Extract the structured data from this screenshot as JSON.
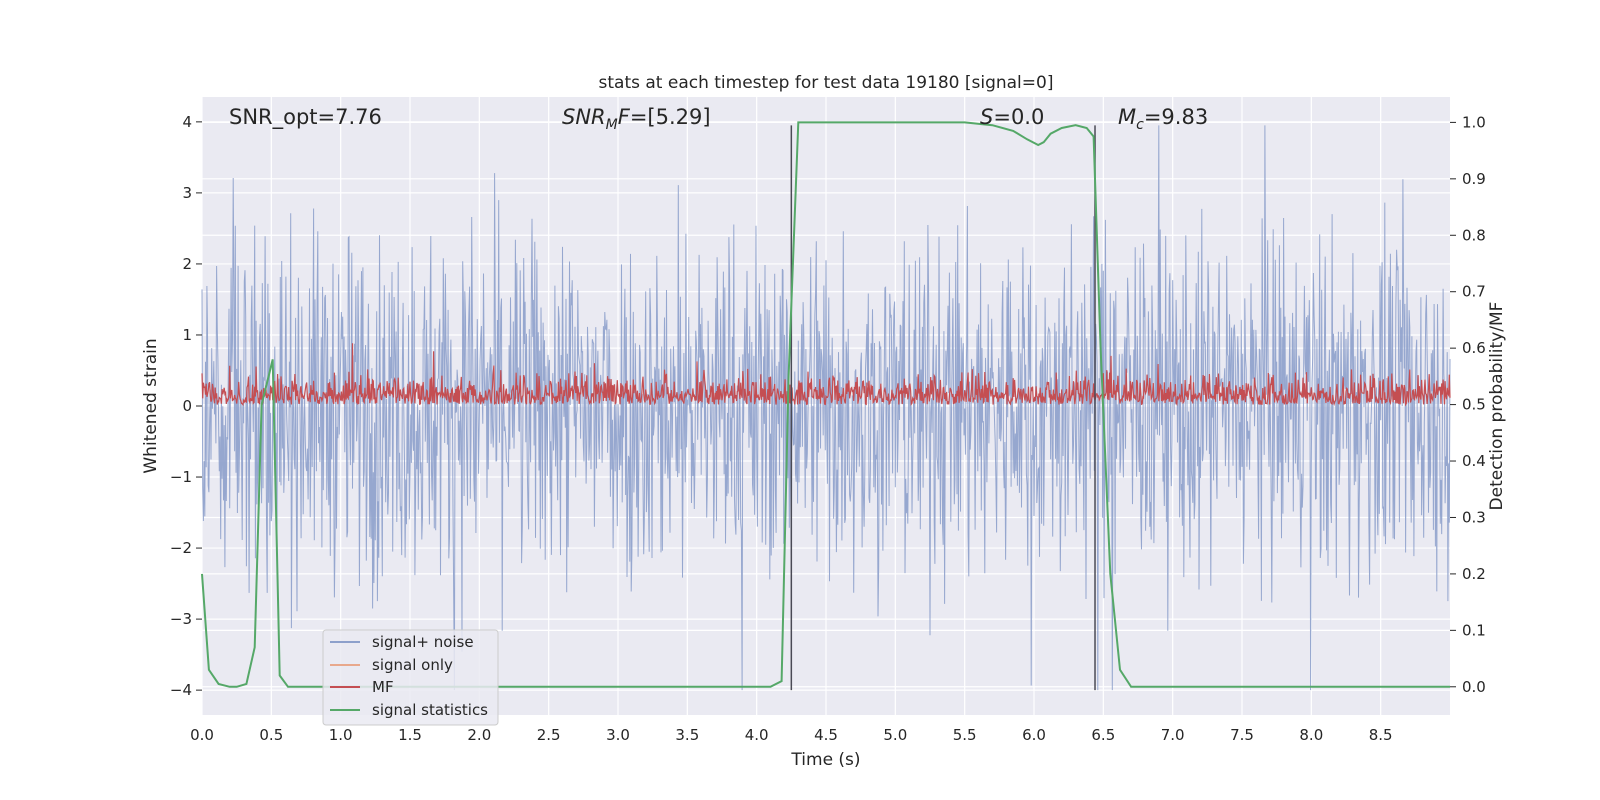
{
  "chart_data": {
    "type": "line",
    "title": "stats at each timestep for test data 19180 [signal=0]",
    "xlabel": "Time (s)",
    "ylabel_left": "Whitened strain",
    "ylabel_right": "Detection probability/MF",
    "xlim": [
      0,
      9.0
    ],
    "ylim_left": [
      -4.35,
      4.35
    ],
    "ylim_right": [
      -0.05,
      1.045
    ],
    "x_ticks": [
      "0.0",
      "0.5",
      "1.0",
      "1.5",
      "2.0",
      "2.5",
      "3.0",
      "3.5",
      "4.0",
      "4.5",
      "5.0",
      "5.5",
      "6.0",
      "6.5",
      "7.0",
      "7.5",
      "8.0",
      "8.5"
    ],
    "y_left_ticks": [
      "−4",
      "−3",
      "−2",
      "−1",
      "0",
      "1",
      "2",
      "3",
      "4"
    ],
    "y_right_ticks": [
      "0.0",
      "0.1",
      "0.2",
      "0.3",
      "0.4",
      "0.5",
      "0.6",
      "0.7",
      "0.8",
      "0.9",
      "1.0"
    ],
    "grid": true,
    "annotations": [
      {
        "id": "snr-opt",
        "text": "SNR_opt=7.76",
        "x": 0.19,
        "y": 4.0
      },
      {
        "id": "snr-mf",
        "text": "SNR_MF=[5.29]",
        "x": 2.6,
        "y": 4.0
      },
      {
        "id": "s-value",
        "text": "S=0.0",
        "x": 5.6,
        "y": 4.0
      },
      {
        "id": "mc-value",
        "text": "M_c=9.83",
        "x": 6.6,
        "y": 4.0
      }
    ],
    "vlines": [
      4.25,
      6.44
    ],
    "series": [
      {
        "name": "signal+ noise",
        "color": "#8da0cb",
        "axis": "left",
        "description_values": "whitened strain noise, roughly within -4 to 4",
        "envelope": {
          "typical_abs": 1.6,
          "max": 3.95,
          "min": -4.0
        }
      },
      {
        "name": "signal only",
        "color": "#e8a88c",
        "axis": "left",
        "values": []
      },
      {
        "name": "MF",
        "color": "#c44e52",
        "axis": "right",
        "baseline": 0.5,
        "typical_max": 0.58,
        "max": 0.625
      },
      {
        "name": "signal statistics",
        "color": "#55a868",
        "axis": "right",
        "x": [
          0.0,
          0.05,
          0.12,
          0.2,
          0.25,
          0.32,
          0.38,
          0.43,
          0.48,
          0.51,
          0.56,
          0.62,
          0.7,
          1.0,
          2.0,
          3.0,
          4.0,
          4.1,
          4.18,
          4.23,
          4.3,
          4.6,
          5.0,
          5.5,
          5.7,
          5.85,
          5.95,
          6.03,
          6.07,
          6.12,
          6.2,
          6.3,
          6.38,
          6.43,
          6.48,
          6.55,
          6.62,
          6.7,
          7.0,
          8.0,
          9.0
        ],
        "values": [
          0.2,
          0.03,
          0.005,
          0.0,
          0.0,
          0.005,
          0.07,
          0.5,
          0.55,
          0.58,
          0.02,
          0.0,
          0.0,
          0.0,
          0.0,
          0.0,
          0.0,
          0.0,
          0.01,
          0.55,
          1.0,
          1.0,
          1.0,
          1.0,
          0.995,
          0.985,
          0.97,
          0.96,
          0.965,
          0.98,
          0.99,
          0.995,
          0.99,
          0.975,
          0.6,
          0.2,
          0.03,
          0.0,
          0.0,
          0.0,
          0.0
        ]
      }
    ],
    "legend": {
      "placement": "lower-left",
      "entries": [
        "signal+ noise",
        "signal only",
        "MF",
        "signal statistics"
      ]
    }
  }
}
